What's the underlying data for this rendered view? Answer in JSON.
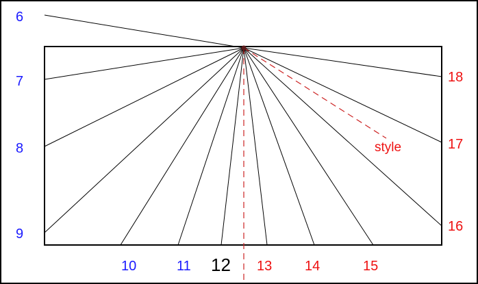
{
  "diagram": {
    "colors": {
      "morning": "#1a1aff",
      "afternoon": "#ee1111",
      "noon": "#000000",
      "line": "#000000",
      "style": "#cc2222"
    },
    "morning_labels": [
      "6",
      "7",
      "8",
      "9",
      "10",
      "11"
    ],
    "noon_label": "12",
    "afternoon_labels": [
      "13",
      "14",
      "15",
      "16",
      "17",
      "18"
    ],
    "style_label": "style"
  }
}
